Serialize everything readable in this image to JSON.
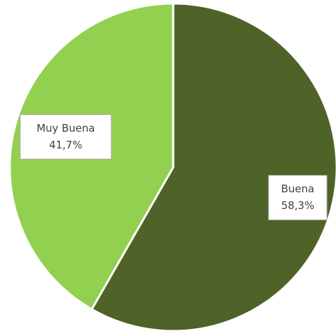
{
  "chart_data": {
    "type": "pie",
    "categories": [
      "Buena",
      "Muy Buena"
    ],
    "values": [
      58.3,
      41.7
    ],
    "value_labels": [
      "58,3%",
      "41,7%"
    ],
    "colors": [
      "#4f6228",
      "#92d050"
    ],
    "start_angle": 0,
    "direction": "clockwise"
  }
}
